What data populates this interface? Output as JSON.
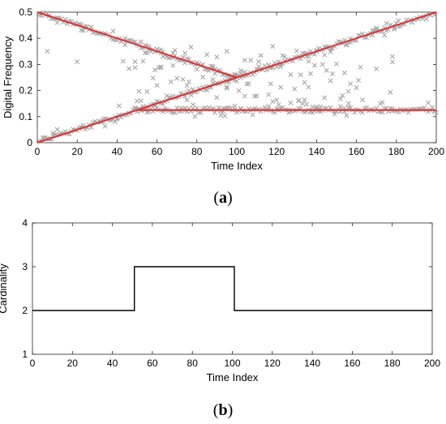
{
  "chart_data": [
    {
      "type": "scatter",
      "panel": "a",
      "xlabel": "Time Index",
      "ylabel": "Digital Frequency",
      "xlim": [
        0,
        200
      ],
      "ylim": [
        0,
        0.5
      ],
      "xticks": [
        0,
        20,
        40,
        60,
        80,
        100,
        120,
        140,
        160,
        180,
        200
      ],
      "yticks": [
        0,
        0.1,
        0.2,
        0.3,
        0.4,
        0.5
      ],
      "grid": false,
      "marker": "x",
      "marker_color": "#a6a6a6",
      "line_color": "#e03030",
      "true_tracks": [
        {
          "x": [
            0,
            100
          ],
          "y": [
            0.5,
            0.25
          ]
        },
        {
          "x": [
            0,
            200
          ],
          "y": [
            0,
            0.5
          ]
        },
        {
          "x": [
            50,
            200
          ],
          "y": [
            0.125,
            0.125
          ]
        }
      ]
    },
    {
      "type": "line",
      "panel": "b",
      "xlabel": "Time Index",
      "ylabel": "Cardinality",
      "xlim": [
        0,
        200
      ],
      "ylim": [
        1,
        4
      ],
      "xticks": [
        0,
        20,
        40,
        60,
        80,
        100,
        120,
        140,
        160,
        180,
        200
      ],
      "yticks": [
        1,
        2,
        3,
        4
      ],
      "grid": false,
      "line_color": "#000000",
      "x": [
        0,
        51,
        51,
        101,
        101,
        200
      ],
      "y": [
        2,
        2,
        3,
        3,
        2,
        2
      ]
    }
  ],
  "captions": {
    "a_open": "(",
    "a_letter": "a",
    "a_close": ")",
    "b_open": "(",
    "b_letter": "b",
    "b_close": ")"
  }
}
